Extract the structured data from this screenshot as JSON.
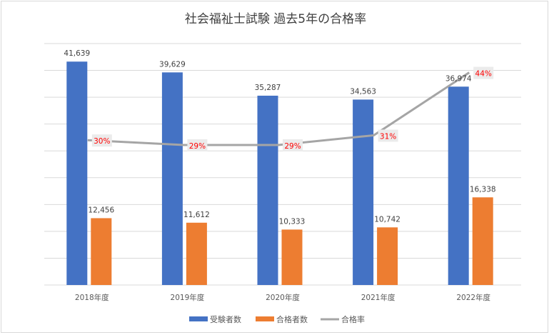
{
  "chart_data": {
    "type": "bar",
    "title": "社会福祉士試験 過去5年の合格率",
    "categories": [
      "2018年度",
      "2019年度",
      "2020年度",
      "2021年度",
      "2022年度"
    ],
    "series": [
      {
        "name": "受験者数",
        "type": "bar",
        "color": "#4472c4",
        "values": [
          41639,
          39629,
          35287,
          34563,
          36974
        ],
        "labels": [
          "41,639",
          "39,629",
          "35,287",
          "34,563",
          "36,974"
        ]
      },
      {
        "name": "合格者数",
        "type": "bar",
        "color": "#ed7d31",
        "values": [
          12456,
          11612,
          10333,
          10742,
          16338
        ],
        "labels": [
          "12,456",
          "11,612",
          "10,333",
          "10,742",
          "16,338"
        ]
      },
      {
        "name": "合格率",
        "type": "line",
        "color": "#a5a5a5",
        "axis": "secondary",
        "values": [
          30,
          29,
          29,
          31,
          44
        ],
        "labels": [
          "30%",
          "29%",
          "29%",
          "31%",
          "44%"
        ]
      }
    ],
    "ylim": [
      0,
      45000
    ],
    "ytick_step": 5000,
    "y2lim": [
      0,
      50
    ],
    "grid": true,
    "legend": "bottom",
    "xlabel": "",
    "ylabel": ""
  }
}
